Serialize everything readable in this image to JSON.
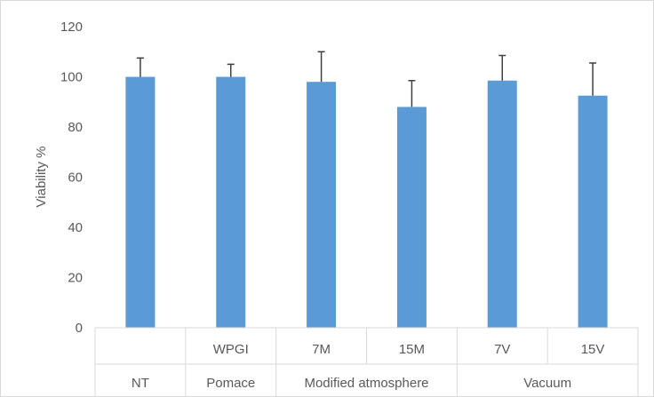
{
  "chart_data": {
    "type": "bar",
    "title": "",
    "xlabel": "",
    "ylabel": "Viability %",
    "ylim": [
      0,
      120
    ],
    "yticks": [
      0,
      20,
      40,
      60,
      80,
      100,
      120
    ],
    "grid": false,
    "legend": "none",
    "bar_color": "#5b9bd5",
    "error_bar_color": "#404040",
    "categories": [
      "",
      "WPGI",
      "7M",
      "15M",
      "7V",
      "15V"
    ],
    "groups": [
      {
        "label": "NT",
        "span": 1
      },
      {
        "label": "Pomace",
        "span": 1
      },
      {
        "label": "Modified atmosphere",
        "span": 2
      },
      {
        "label": "Vacuum",
        "span": 2
      }
    ],
    "values": [
      100,
      100,
      98,
      88,
      98.5,
      92.5
    ],
    "error_plus": [
      7.5,
      5,
      12,
      10.5,
      10,
      13
    ]
  }
}
